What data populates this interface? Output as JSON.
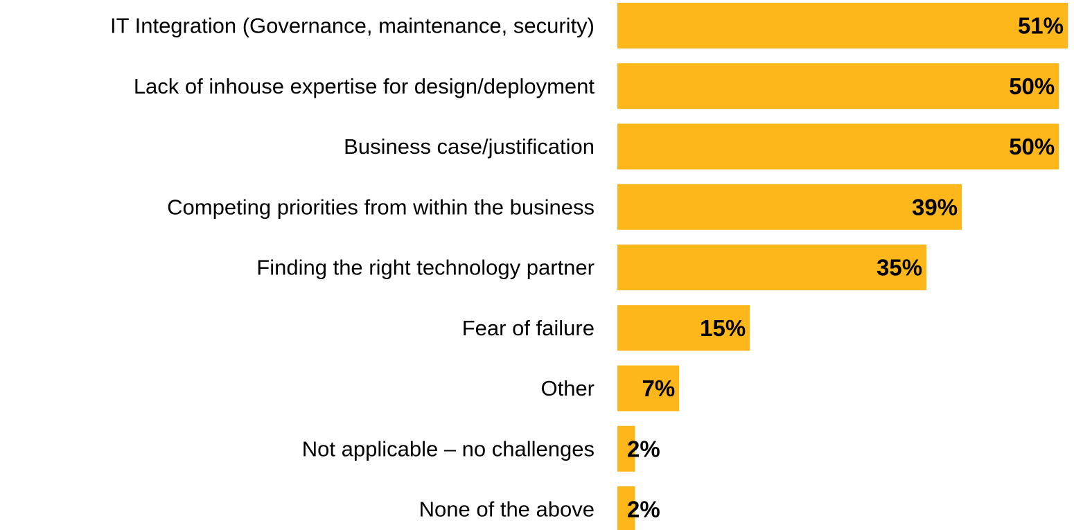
{
  "chart_data": {
    "type": "bar",
    "orientation": "horizontal",
    "categories": [
      "IT Integration (Governance, maintenance, security)",
      "Lack of inhouse expertise for design/deployment",
      "Business case/justification",
      "Competing priorities from within the business",
      "Finding the right technology partner",
      "Fear of failure",
      "Other",
      "Not applicable – no challenges",
      "None of the above"
    ],
    "values": [
      51,
      50,
      50,
      39,
      35,
      15,
      7,
      2,
      2
    ],
    "value_labels": [
      "51%",
      "50%",
      "50%",
      "39%",
      "35%",
      "15%",
      "7%",
      "2%",
      "2%"
    ],
    "unit": "%",
    "xlim": [
      0,
      51
    ],
    "bar_color": "#FDB71A",
    "grid": false,
    "legend": "none",
    "title": "",
    "xlabel": "",
    "ylabel": ""
  }
}
